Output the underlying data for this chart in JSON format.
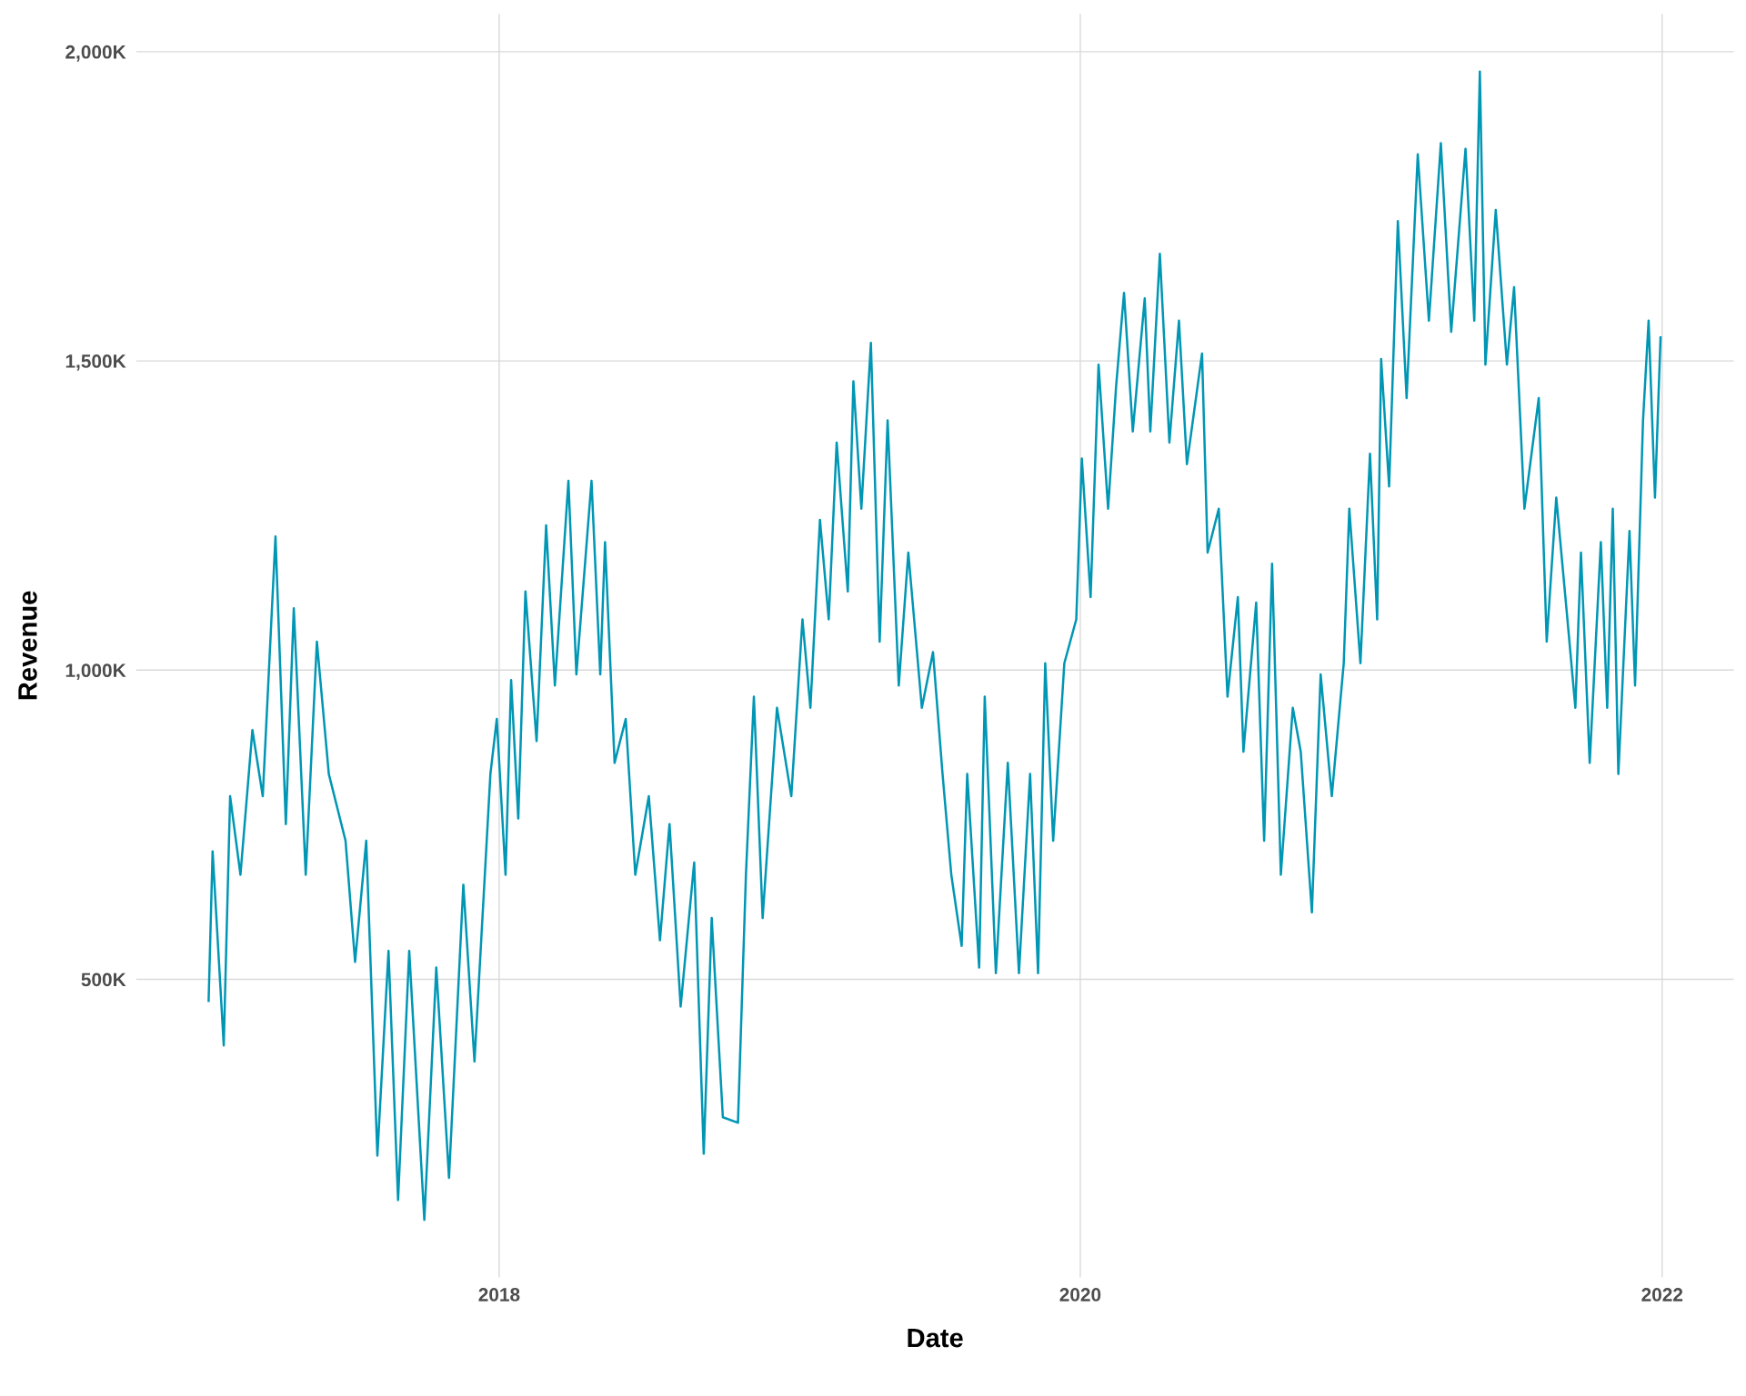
{
  "chart_data": {
    "type": "line",
    "xlabel": "Date",
    "ylabel": "Revenue",
    "grid": true,
    "marker": "none",
    "line_style": "solid",
    "xlim": [
      "2016-10-02",
      "2022-04-01"
    ],
    "xticks": [
      {
        "value": "2018-01-01",
        "label": "2018"
      },
      {
        "value": "2020-01-01",
        "label": "2020"
      },
      {
        "value": "2022-01-01",
        "label": "2022"
      }
    ],
    "ylim": [
      18,
      2061
    ],
    "yticks": [
      {
        "value": 500,
        "label": "500K"
      },
      {
        "value": 1000,
        "label": "1,000K"
      },
      {
        "value": 1500,
        "label": "1,500K"
      },
      {
        "value": 2000,
        "label": "2,000K"
      }
    ],
    "series": [
      {
        "color": "#0096b4",
        "x": [
          "2017-01-01",
          "2017-01-06",
          "2017-01-20",
          "2017-01-28",
          "2017-02-10",
          "2017-02-25",
          "2017-03-10",
          "2017-03-26",
          "2017-04-08",
          "2017-04-18",
          "2017-05-03",
          "2017-05-17",
          "2017-06-01",
          "2017-06-22",
          "2017-07-04",
          "2017-07-18",
          "2017-08-01",
          "2017-08-15",
          "2017-08-27",
          "2017-09-10",
          "2017-09-29",
          "2017-10-14",
          "2017-10-30",
          "2017-11-17",
          "2017-12-01",
          "2017-12-21",
          "2017-12-29",
          "2018-01-09",
          "2018-01-16",
          "2018-01-25",
          "2018-02-03",
          "2018-02-17",
          "2018-03-01",
          "2018-03-12",
          "2018-03-29",
          "2018-04-08",
          "2018-04-27",
          "2018-05-08",
          "2018-05-14",
          "2018-05-26",
          "2018-06-09",
          "2018-06-21",
          "2018-07-08",
          "2018-07-22",
          "2018-08-03",
          "2018-08-17",
          "2018-09-03",
          "2018-09-15",
          "2018-09-25",
          "2018-10-09",
          "2018-10-28",
          "2018-11-07",
          "2018-11-17",
          "2018-11-28",
          "2018-12-16",
          "2019-01-03",
          "2019-01-17",
          "2019-01-27",
          "2019-02-08",
          "2019-02-19",
          "2019-03-01",
          "2019-03-15",
          "2019-03-22",
          "2019-04-01",
          "2019-04-13",
          "2019-04-24",
          "2019-05-04",
          "2019-05-18",
          "2019-05-30",
          "2019-06-16",
          "2019-06-30",
          "2019-07-12",
          "2019-07-23",
          "2019-08-05",
          "2019-08-12",
          "2019-08-27",
          "2019-09-03",
          "2019-09-17",
          "2019-10-02",
          "2019-10-16",
          "2019-10-30",
          "2019-11-09",
          "2019-11-18",
          "2019-11-28",
          "2019-12-12",
          "2019-12-27",
          "2020-01-03",
          "2020-01-14",
          "2020-01-24",
          "2020-02-05",
          "2020-02-15",
          "2020-02-25",
          "2020-03-07",
          "2020-03-22",
          "2020-03-29",
          "2020-04-10",
          "2020-04-22",
          "2020-05-04",
          "2020-05-14",
          "2020-06-02",
          "2020-06-09",
          "2020-06-23",
          "2020-07-04",
          "2020-07-17",
          "2020-07-24",
          "2020-08-09",
          "2020-08-19",
          "2020-08-29",
          "2020-09-09",
          "2020-09-24",
          "2020-10-04",
          "2020-10-18",
          "2020-10-29",
          "2020-11-12",
          "2020-11-27",
          "2020-12-04",
          "2020-12-18",
          "2020-12-30",
          "2021-01-08",
          "2021-01-13",
          "2021-01-23",
          "2021-02-03",
          "2021-02-14",
          "2021-02-28",
          "2021-03-14",
          "2021-03-29",
          "2021-04-11",
          "2021-04-29",
          "2021-05-10",
          "2021-05-17",
          "2021-05-24",
          "2021-06-06",
          "2021-06-20",
          "2021-06-29",
          "2021-07-12",
          "2021-07-30",
          "2021-08-09",
          "2021-08-21",
          "2021-09-04",
          "2021-09-14",
          "2021-09-21",
          "2021-10-02",
          "2021-10-16",
          "2021-10-24",
          "2021-10-31",
          "2021-11-07",
          "2021-11-21",
          "2021-11-28",
          "2021-12-08",
          "2021-12-15",
          "2021-12-23",
          "2021-12-30"
        ],
        "values": [
          465,
          707,
          393,
          796,
          669,
          903,
          796,
          1216,
          751,
          1100,
          669,
          1046,
          832,
          724,
          528,
          724,
          215,
          546,
          143,
          546,
          111,
          519,
          179,
          653,
          367,
          832,
          921,
          669,
          984,
          760,
          1127,
          885,
          1234,
          975,
          1306,
          993,
          1306,
          993,
          1207,
          850,
          921,
          669,
          796,
          563,
          751,
          456,
          689,
          218,
          599,
          277,
          268,
          669,
          957,
          599,
          939,
          796,
          1082,
          939,
          1243,
          1082,
          1368,
          1127,
          1467,
          1261,
          1529,
          1046,
          1404,
          975,
          1190,
          939,
          1029,
          832,
          669,
          554,
          832,
          519,
          957,
          510,
          850,
          510,
          832,
          510,
          1011,
          724,
          1011,
          1082,
          1342,
          1118,
          1494,
          1261,
          1458,
          1610,
          1386,
          1601,
          1386,
          1673,
          1368,
          1565,
          1333,
          1512,
          1190,
          1261,
          957,
          1118,
          868,
          1109,
          724,
          1172,
          669,
          939,
          868,
          608,
          993,
          796,
          1011,
          1261,
          1011,
          1350,
          1082,
          1503,
          1297,
          1726,
          1440,
          1834,
          1565,
          1852,
          1547,
          1843,
          1565,
          1968,
          1494,
          1744,
          1494,
          1619,
          1261,
          1440,
          1046,
          1279,
          1082,
          939,
          1190,
          850,
          1207,
          939,
          1261,
          832,
          1225,
          975,
          1404,
          1565,
          1279,
          1538
        ]
      }
    ]
  }
}
